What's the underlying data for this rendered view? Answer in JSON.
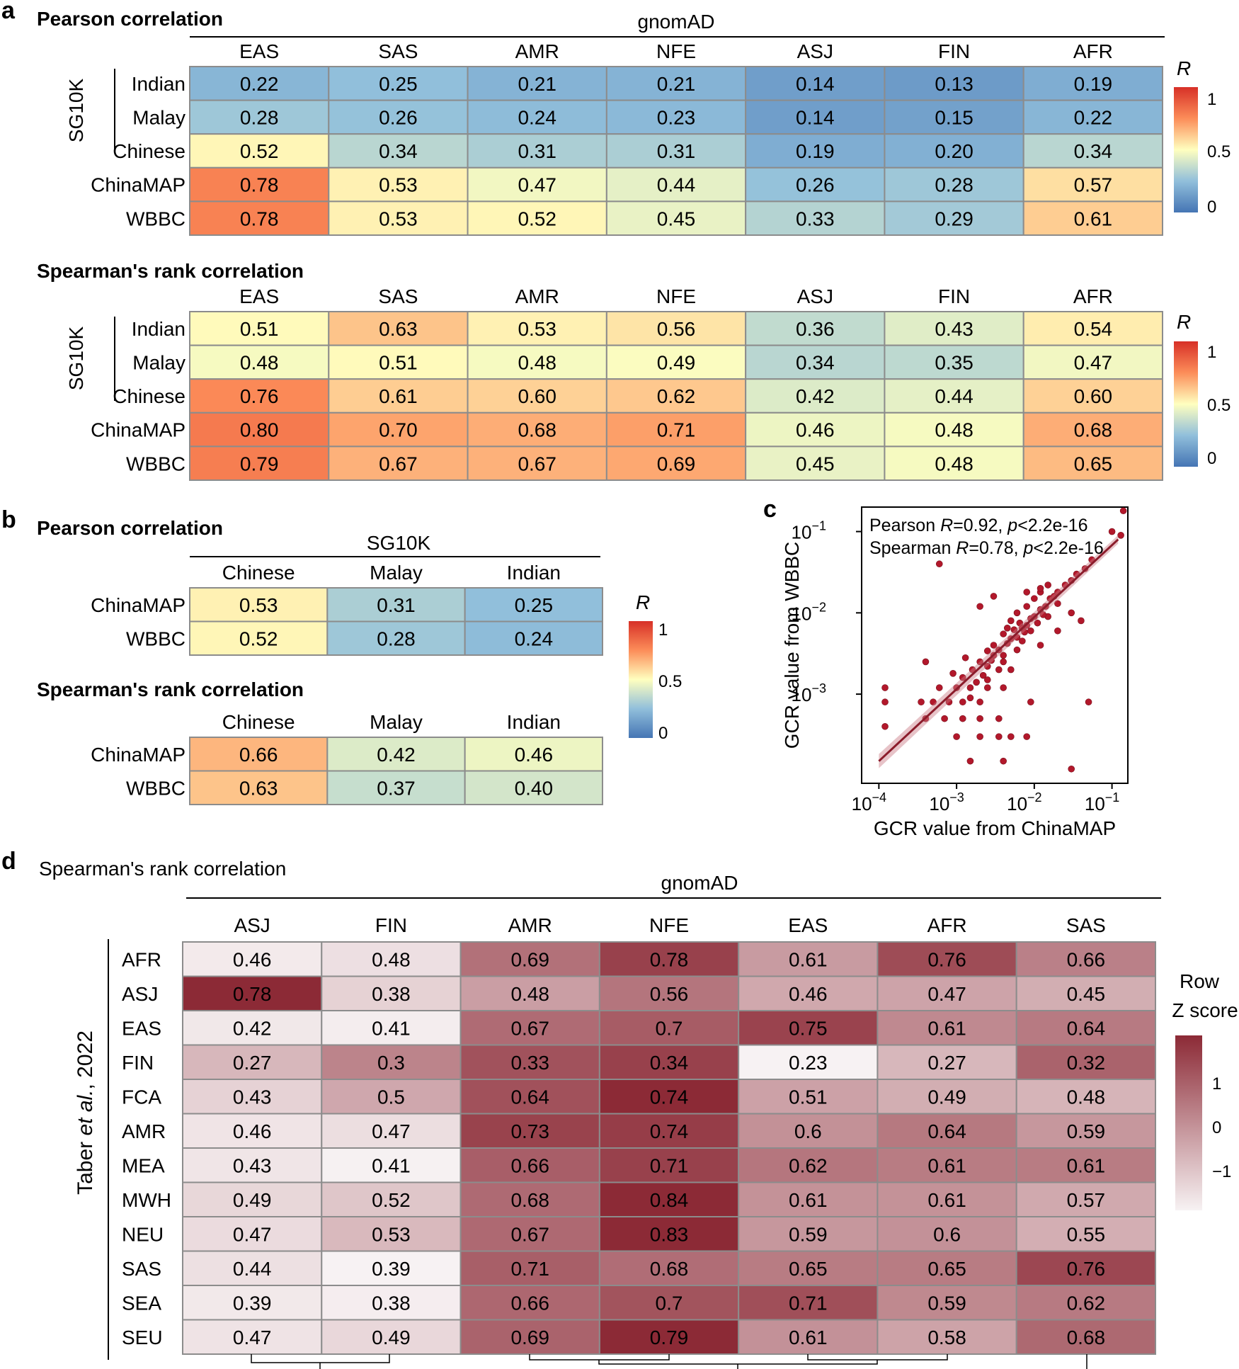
{
  "panel_a": {
    "letter": "a",
    "top_header": "gnomAD",
    "group_label": "SG10K",
    "legend_title": "R",
    "legend_ticks": [
      "1",
      "0.5",
      "0"
    ],
    "pearson_title": "Pearson correlation",
    "spearman_title": "Spearman's rank correlation"
  },
  "panel_b": {
    "letter": "b",
    "top_header": "SG10K",
    "legend_title": "R",
    "legend_ticks": [
      "1",
      "0.5",
      "0"
    ],
    "pearson_title": "Pearson correlation",
    "spearman_title": "Spearman's rank correlation"
  },
  "panel_c": {
    "letter": "c",
    "xlabel": "GCR value from ChinaMAP",
    "ylabel": "GCR value from WBBC",
    "stat_pearson": {
      "name": "Pearson ",
      "r_label": "R",
      "r_value": "=0.92, ",
      "p_label": "p",
      "p_value": "<2.2e-16"
    },
    "stat_spearman": {
      "name": "Spearman ",
      "r_label": "R",
      "r_value": "=0.78, ",
      "p_label": "p",
      "p_value": "<2.2e-16"
    },
    "x_ticks": [
      {
        "base": "10",
        "exp": "−4"
      },
      {
        "base": "10",
        "exp": "−3"
      },
      {
        "base": "10",
        "exp": "−2"
      },
      {
        "base": "10",
        "exp": "−1"
      }
    ],
    "y_ticks": [
      {
        "base": "10",
        "exp": "−1"
      },
      {
        "base": "10",
        "exp": "−2"
      },
      {
        "base": "10",
        "exp": "−3"
      }
    ]
  },
  "panel_d": {
    "letter": "d",
    "title": "Spearman's rank correlation",
    "top_header": "gnomAD",
    "ylabel_prefix": "Taber ",
    "ylabel_italic": "et al.",
    "ylabel_suffix": ", 2022",
    "legend_title_1": "Row",
    "legend_title_2": "Z score",
    "legend_ticks": [
      "1",
      "0",
      "−1"
    ]
  },
  "colors": {
    "div_low": "#4575b4",
    "div_mid": "#ffffbf",
    "div_high": "#d73027",
    "zscore_low": "#f7f2f3",
    "zscore_high": "#8c2a36",
    "scatter_point": "#b2182b",
    "fit_line": "#8b1c2b"
  },
  "chart_data": [
    {
      "id": "a_pearson",
      "type": "heatmap",
      "title": "Pearson correlation",
      "columns": [
        "EAS",
        "SAS",
        "AMR",
        "NFE",
        "ASJ",
        "FIN",
        "AFR"
      ],
      "rows": [
        "Indian",
        "Malay",
        "Chinese",
        "ChinaMAP",
        "WBBC"
      ],
      "values": [
        [
          0.22,
          0.25,
          0.21,
          0.21,
          0.14,
          0.13,
          0.19
        ],
        [
          0.28,
          0.26,
          0.24,
          0.23,
          0.14,
          0.15,
          0.22
        ],
        [
          0.52,
          0.34,
          0.31,
          0.31,
          0.19,
          0.2,
          0.34
        ],
        [
          0.78,
          0.53,
          0.47,
          0.44,
          0.26,
          0.28,
          0.57
        ],
        [
          0.78,
          0.53,
          0.52,
          0.45,
          0.33,
          0.29,
          0.61
        ]
      ],
      "labels": [
        [
          "0.22",
          "0.25",
          "0.21",
          "0.21",
          "0.14",
          "0.13",
          "0.19"
        ],
        [
          "0.28",
          "0.26",
          "0.24",
          "0.23",
          "0.14",
          "0.15",
          "0.22"
        ],
        [
          "0.52",
          "0.34",
          "0.31",
          "0.31",
          "0.19",
          "0.20",
          "0.34"
        ],
        [
          "0.78",
          "0.53",
          "0.47",
          "0.44",
          "0.26",
          "0.28",
          "0.57"
        ],
        [
          "0.78",
          "0.53",
          "0.52",
          "0.45",
          "0.33",
          "0.29",
          "0.61"
        ]
      ],
      "color_range": [
        0,
        1
      ]
    },
    {
      "id": "a_spearman",
      "type": "heatmap",
      "title": "Spearman's rank correlation",
      "columns": [
        "EAS",
        "SAS",
        "AMR",
        "NFE",
        "ASJ",
        "FIN",
        "AFR"
      ],
      "rows": [
        "Indian",
        "Malay",
        "Chinese",
        "ChinaMAP",
        "WBBC"
      ],
      "values": [
        [
          0.51,
          0.63,
          0.53,
          0.56,
          0.36,
          0.43,
          0.54
        ],
        [
          0.48,
          0.51,
          0.48,
          0.49,
          0.34,
          0.35,
          0.47
        ],
        [
          0.76,
          0.61,
          0.6,
          0.62,
          0.42,
          0.44,
          0.6
        ],
        [
          0.8,
          0.7,
          0.68,
          0.71,
          0.46,
          0.48,
          0.68
        ],
        [
          0.79,
          0.67,
          0.67,
          0.69,
          0.45,
          0.48,
          0.65
        ]
      ],
      "labels": [
        [
          "0.51",
          "0.63",
          "0.53",
          "0.56",
          "0.36",
          "0.43",
          "0.54"
        ],
        [
          "0.48",
          "0.51",
          "0.48",
          "0.49",
          "0.34",
          "0.35",
          "0.47"
        ],
        [
          "0.76",
          "0.61",
          "0.60",
          "0.62",
          "0.42",
          "0.44",
          "0.60"
        ],
        [
          "0.80",
          "0.70",
          "0.68",
          "0.71",
          "0.46",
          "0.48",
          "0.68"
        ],
        [
          "0.79",
          "0.67",
          "0.67",
          "0.69",
          "0.45",
          "0.48",
          "0.65"
        ]
      ],
      "color_range": [
        0,
        1
      ]
    },
    {
      "id": "b_pearson",
      "type": "heatmap",
      "title": "Pearson correlation",
      "columns": [
        "Chinese",
        "Malay",
        "Indian"
      ],
      "rows": [
        "ChinaMAP",
        "WBBC"
      ],
      "values": [
        [
          0.53,
          0.31,
          0.25
        ],
        [
          0.52,
          0.28,
          0.24
        ]
      ],
      "labels": [
        [
          "0.53",
          "0.31",
          "0.25"
        ],
        [
          "0.52",
          "0.28",
          "0.24"
        ]
      ],
      "color_range": [
        0,
        1
      ]
    },
    {
      "id": "b_spearman",
      "type": "heatmap",
      "title": "Spearman's rank correlation",
      "columns": [
        "Chinese",
        "Malay",
        "Indian"
      ],
      "rows": [
        "ChinaMAP",
        "WBBC"
      ],
      "values": [
        [
          0.66,
          0.42,
          0.46
        ],
        [
          0.63,
          0.37,
          0.4
        ]
      ],
      "labels": [
        [
          "0.66",
          "0.42",
          "0.46"
        ],
        [
          "0.63",
          "0.37",
          "0.40"
        ]
      ],
      "color_range": [
        0,
        1
      ]
    },
    {
      "id": "c_scatter",
      "type": "scatter",
      "title": "",
      "xlabel": "GCR value from ChinaMAP",
      "ylabel": "GCR value from WBBC",
      "scale": "log10",
      "xlim": [
        6e-05,
        0.16
      ],
      "ylim": [
        8e-05,
        0.2
      ],
      "fit_line": {
        "x": [
          0.0001,
          0.12
        ],
        "y": [
          0.00015,
          0.08
        ]
      },
      "points": [
        [
          0.00012,
          0.0008
        ],
        [
          0.00012,
          0.0004
        ],
        [
          0.00012,
          0.0012
        ],
        [
          0.0004,
          0.0025
        ],
        [
          0.0006,
          0.04
        ],
        [
          0.00035,
          0.0008
        ],
        [
          0.0005,
          0.0008
        ],
        [
          0.0008,
          0.0008
        ],
        [
          0.0012,
          0.0008
        ],
        [
          0.002,
          0.0008
        ],
        [
          0.0004,
          0.0005
        ],
        [
          0.0007,
          0.0005
        ],
        [
          0.0012,
          0.0005
        ],
        [
          0.002,
          0.0005
        ],
        [
          0.0035,
          0.0005
        ],
        [
          0.0006,
          0.0012
        ],
        [
          0.001,
          0.0012
        ],
        [
          0.0015,
          0.0012
        ],
        [
          0.0025,
          0.0012
        ],
        [
          0.004,
          0.0012
        ],
        [
          0.001,
          0.0003
        ],
        [
          0.002,
          0.0003
        ],
        [
          0.0035,
          0.0003
        ],
        [
          0.005,
          0.0003
        ],
        [
          0.008,
          0.0003
        ],
        [
          0.0015,
          0.00015
        ],
        [
          0.004,
          0.00015
        ],
        [
          0.03,
          0.00012
        ],
        [
          0.05,
          0.0008
        ],
        [
          0.009,
          0.0008
        ],
        [
          0.0012,
          0.0016
        ],
        [
          0.0016,
          0.002
        ],
        [
          0.002,
          0.0025
        ],
        [
          0.0025,
          0.0022
        ],
        [
          0.003,
          0.003
        ],
        [
          0.0018,
          0.0014
        ],
        [
          0.0022,
          0.0017
        ],
        [
          0.0028,
          0.0026
        ],
        [
          0.0035,
          0.0035
        ],
        [
          0.004,
          0.003
        ],
        [
          0.0045,
          0.0042
        ],
        [
          0.005,
          0.0048
        ],
        [
          0.006,
          0.005
        ],
        [
          0.007,
          0.0065
        ],
        [
          0.008,
          0.007
        ],
        [
          0.009,
          0.0085
        ],
        [
          0.01,
          0.009
        ],
        [
          0.012,
          0.011
        ],
        [
          0.014,
          0.012
        ],
        [
          0.016,
          0.015
        ],
        [
          0.018,
          0.016
        ],
        [
          0.02,
          0.018
        ],
        [
          0.025,
          0.022
        ],
        [
          0.03,
          0.025
        ],
        [
          0.035,
          0.03
        ],
        [
          0.005,
          0.008
        ],
        [
          0.006,
          0.01
        ],
        [
          0.008,
          0.012
        ],
        [
          0.01,
          0.015
        ],
        [
          0.012,
          0.018
        ],
        [
          0.004,
          0.0055
        ],
        [
          0.003,
          0.004
        ],
        [
          0.0025,
          0.0034
        ],
        [
          0.007,
          0.0045
        ],
        [
          0.009,
          0.006
        ],
        [
          0.015,
          0.009
        ],
        [
          0.02,
          0.013
        ],
        [
          0.004,
          0.0025
        ],
        [
          0.006,
          0.0035
        ],
        [
          0.0035,
          0.002
        ],
        [
          0.0065,
          0.0075
        ],
        [
          0.0075,
          0.0058
        ],
        [
          0.011,
          0.0075
        ],
        [
          0.013,
          0.0095
        ],
        [
          0.0055,
          0.0062
        ],
        [
          0.012,
          0.02
        ],
        [
          0.015,
          0.022
        ],
        [
          0.008,
          0.018
        ],
        [
          0.002,
          0.012
        ],
        [
          0.003,
          0.016
        ],
        [
          0.005,
          0.002
        ],
        [
          0.02,
          0.006
        ],
        [
          0.03,
          0.01
        ],
        [
          0.012,
          0.004
        ],
        [
          0.04,
          0.008
        ],
        [
          0.1,
          0.1
        ],
        [
          0.14,
          0.18
        ],
        [
          0.13,
          0.09
        ],
        [
          0.055,
          0.045
        ],
        [
          0.045,
          0.035
        ],
        [
          0.0015,
          0.0009
        ],
        [
          0.0025,
          0.0015
        ],
        [
          0.0009,
          0.0018
        ],
        [
          0.0013,
          0.0028
        ],
        [
          0.0045,
          0.0065
        ]
      ]
    },
    {
      "id": "d_spearman_zscore",
      "type": "heatmap",
      "title": "Spearman's rank correlation",
      "columns": [
        "ASJ",
        "FIN",
        "AMR",
        "NFE",
        "EAS",
        "AFR",
        "SAS"
      ],
      "rows": [
        "AFR",
        "ASJ",
        "EAS",
        "FIN",
        "FCA",
        "AMR",
        "MEA",
        "MWH",
        "NEU",
        "SAS",
        "SEA",
        "SEU"
      ],
      "values": [
        [
          0.46,
          0.48,
          0.69,
          0.78,
          0.61,
          0.76,
          0.66
        ],
        [
          0.78,
          0.38,
          0.48,
          0.56,
          0.46,
          0.47,
          0.45
        ],
        [
          0.42,
          0.41,
          0.67,
          0.7,
          0.75,
          0.61,
          0.64
        ],
        [
          0.27,
          0.3,
          0.33,
          0.34,
          0.23,
          0.27,
          0.32
        ],
        [
          0.43,
          0.5,
          0.64,
          0.74,
          0.51,
          0.49,
          0.48
        ],
        [
          0.46,
          0.47,
          0.73,
          0.74,
          0.6,
          0.64,
          0.59
        ],
        [
          0.43,
          0.41,
          0.66,
          0.71,
          0.62,
          0.61,
          0.61
        ],
        [
          0.49,
          0.52,
          0.68,
          0.84,
          0.61,
          0.61,
          0.57
        ],
        [
          0.47,
          0.53,
          0.67,
          0.83,
          0.59,
          0.6,
          0.55
        ],
        [
          0.44,
          0.39,
          0.71,
          0.68,
          0.65,
          0.65,
          0.76
        ],
        [
          0.39,
          0.38,
          0.66,
          0.7,
          0.71,
          0.59,
          0.62
        ],
        [
          0.47,
          0.49,
          0.69,
          0.79,
          0.61,
          0.58,
          0.68
        ]
      ],
      "labels": [
        [
          "0.46",
          "0.48",
          "0.69",
          "0.78",
          "0.61",
          "0.76",
          "0.66"
        ],
        [
          "0.78",
          "0.38",
          "0.48",
          "0.56",
          "0.46",
          "0.47",
          "0.45"
        ],
        [
          "0.42",
          "0.41",
          "0.67",
          "0.7",
          "0.75",
          "0.61",
          "0.64"
        ],
        [
          "0.27",
          "0.3",
          "0.33",
          "0.34",
          "0.23",
          "0.27",
          "0.32"
        ],
        [
          "0.43",
          "0.5",
          "0.64",
          "0.74",
          "0.51",
          "0.49",
          "0.48"
        ],
        [
          "0.46",
          "0.47",
          "0.73",
          "0.74",
          "0.6",
          "0.64",
          "0.59"
        ],
        [
          "0.43",
          "0.41",
          "0.66",
          "0.71",
          "0.62",
          "0.61",
          "0.61"
        ],
        [
          "0.49",
          "0.52",
          "0.68",
          "0.84",
          "0.61",
          "0.61",
          "0.57"
        ],
        [
          "0.47",
          "0.53",
          "0.67",
          "0.83",
          "0.59",
          "0.6",
          "0.55"
        ],
        [
          "0.44",
          "0.39",
          "0.71",
          "0.68",
          "0.65",
          "0.65",
          "0.76"
        ],
        [
          "0.39",
          "0.38",
          "0.66",
          "0.7",
          "0.71",
          "0.59",
          "0.62"
        ],
        [
          "0.47",
          "0.49",
          "0.69",
          "0.79",
          "0.61",
          "0.58",
          "0.68"
        ]
      ],
      "color_range": [
        -1.5,
        1.5
      ]
    }
  ]
}
